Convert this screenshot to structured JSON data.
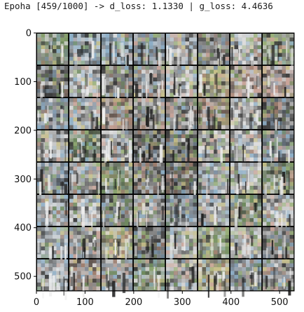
{
  "output": {
    "log_line": "Epoha [459/1000] -> d_loss: 1.1330 | g_loss: 4.4636"
  },
  "chart_data": {
    "type": "image",
    "image_content": "8x8 grid of GAN-generated sample images (noisy, crowd-like scenes)",
    "grid": {
      "rows": 8,
      "cols": 8
    },
    "xlim": [
      0,
      530
    ],
    "ylim": [
      530,
      0
    ],
    "x_ticks": [
      0,
      100,
      200,
      300,
      400,
      500
    ],
    "y_ticks": [
      0,
      100,
      200,
      300,
      400,
      500
    ],
    "x_tick_labels": [
      "0",
      "100",
      "200",
      "300",
      "400",
      "500"
    ],
    "y_tick_labels": [
      "0",
      "100",
      "200",
      "300",
      "400",
      "500"
    ],
    "title": "",
    "xlabel": "",
    "ylabel": "",
    "grid_lines": false,
    "colors": {
      "separator": "#000000",
      "palette": [
        "#6e6e6e",
        "#8a8a8a",
        "#a5a5a5",
        "#c8c8c8",
        "#dcdcdc",
        "#4a4a4a",
        "#3a3a3a",
        "#7e8fa0",
        "#8fb0c8",
        "#b8c4ce",
        "#9ab07a",
        "#c8c08a",
        "#6f8a5e",
        "#a08070",
        "#c9a59a"
      ]
    }
  }
}
